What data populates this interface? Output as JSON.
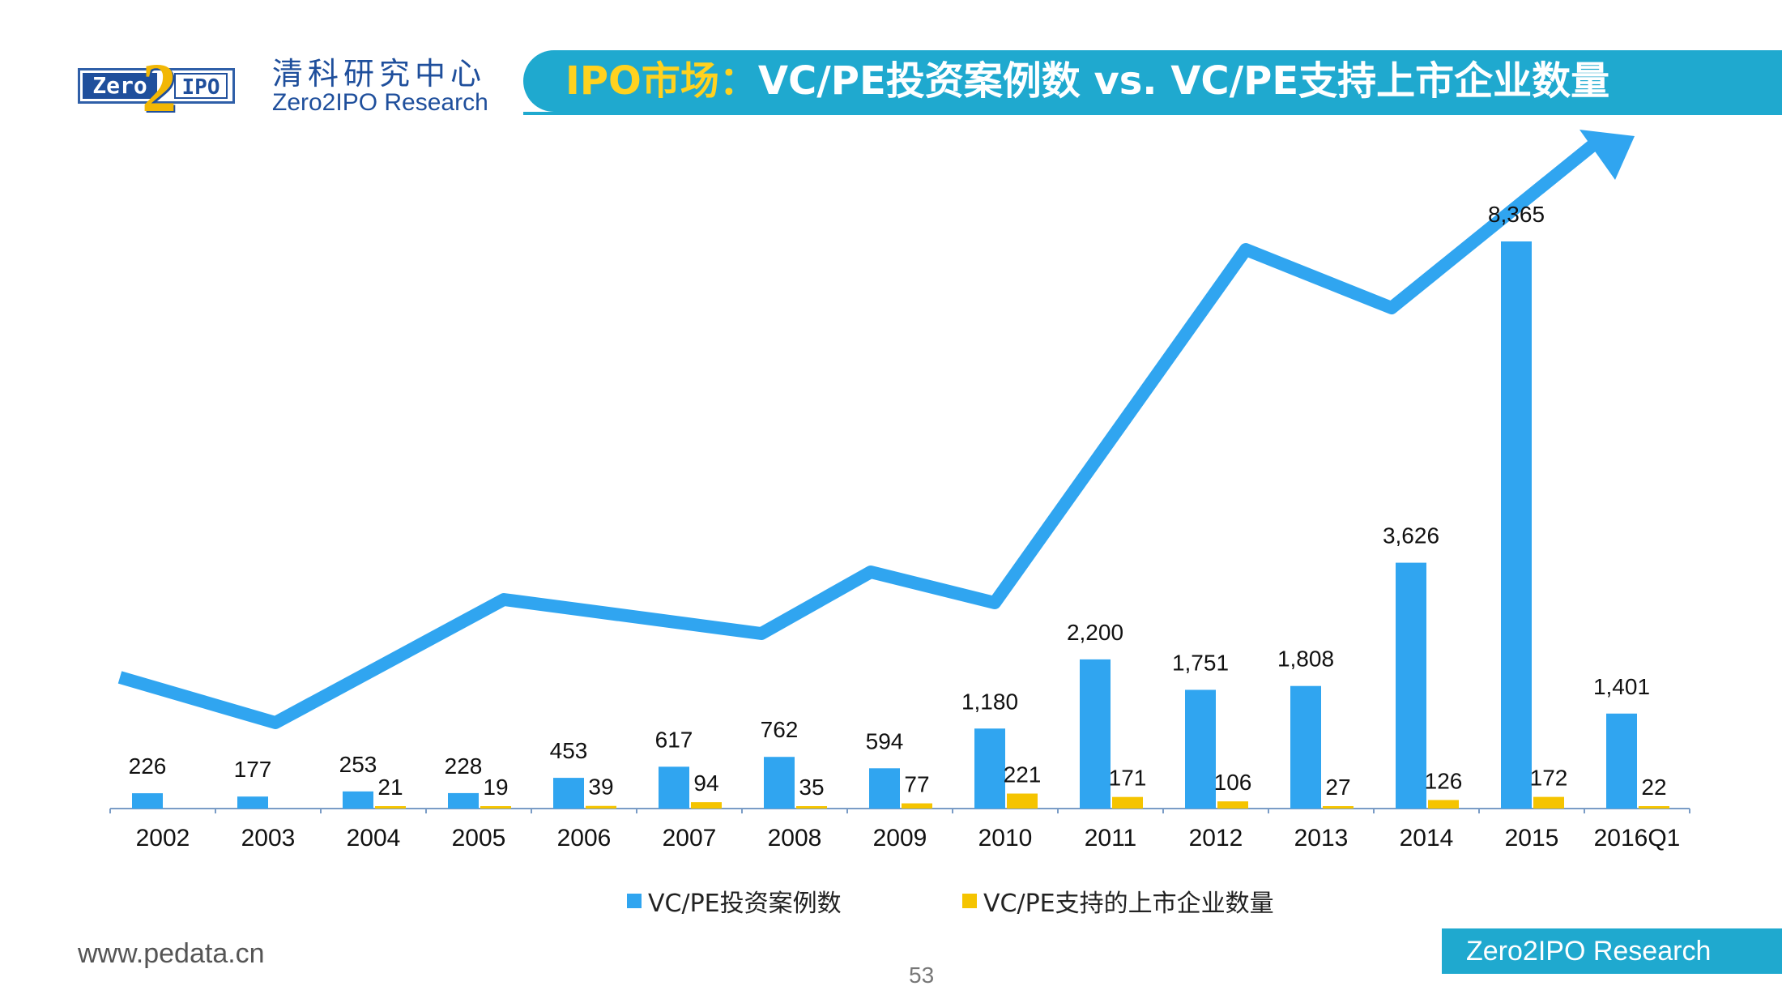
{
  "header": {
    "logo_left": "Zero",
    "logo_two": "2",
    "logo_right": "IPO",
    "org_cn": "清科研究中心",
    "org_en": "Zero2IPO Research",
    "title_highlight": "IPO市场：",
    "title_rest": "VC/PE投资案例数 vs. VC/PE支持上市企业数量"
  },
  "footer": {
    "url": "www.pedata.cn",
    "page": "53",
    "brand": "Zero2IPO Research"
  },
  "colors": {
    "accent": "#1fa9cf",
    "invest": "#30a5f0",
    "ipo": "#f5c400",
    "trend": "#30a5f0"
  },
  "chart_data": {
    "type": "bar",
    "categories": [
      "2002",
      "2003",
      "2004",
      "2005",
      "2006",
      "2007",
      "2008",
      "2009",
      "2010",
      "2011",
      "2012",
      "2013",
      "2014",
      "2015",
      "2016Q1"
    ],
    "series": [
      {
        "name": "VC/PE投资案例数",
        "values": [
          226,
          177,
          253,
          228,
          453,
          617,
          762,
          594,
          1180,
          2200,
          1751,
          1808,
          3626,
          8365,
          1401
        ],
        "labels": [
          "226",
          "177",
          "253",
          "228",
          "453",
          "617",
          "762",
          "594",
          "1,180",
          "2,200",
          "1,751",
          "1,808",
          "3,626",
          "8,365",
          "1,401"
        ]
      },
      {
        "name": "VC/PE支持的上市企业数量",
        "values": [
          null,
          null,
          21,
          19,
          39,
          94,
          35,
          77,
          221,
          171,
          106,
          27,
          126,
          172,
          22
        ],
        "labels": [
          "",
          "",
          "21",
          "19",
          "39",
          "94",
          "35",
          "77",
          "221",
          "171",
          "106",
          "27",
          "126",
          "172",
          "22"
        ]
      }
    ],
    "trend_arrow": true,
    "ylim": [
      0,
      9000
    ],
    "grid": false,
    "legend_position": "bottom"
  }
}
